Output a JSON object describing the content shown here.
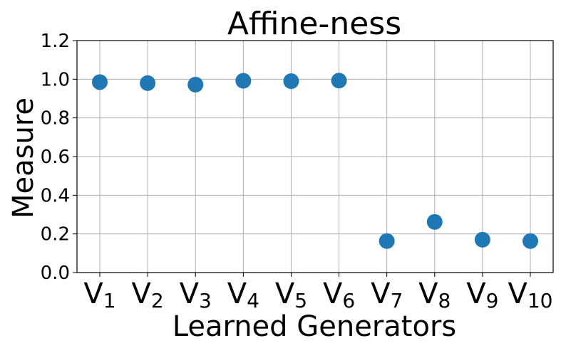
{
  "chart_data": {
    "type": "scatter",
    "title": "Affine-ness",
    "xlabel": "Learned Generators",
    "ylabel": "Measure",
    "categories": [
      {
        "base": "V",
        "sub": "1"
      },
      {
        "base": "V",
        "sub": "2"
      },
      {
        "base": "V",
        "sub": "3"
      },
      {
        "base": "V",
        "sub": "4"
      },
      {
        "base": "V",
        "sub": "5"
      },
      {
        "base": "V",
        "sub": "6"
      },
      {
        "base": "V",
        "sub": "7"
      },
      {
        "base": "V",
        "sub": "8"
      },
      {
        "base": "V",
        "sub": "9"
      },
      {
        "base": "V",
        "sub": "10"
      }
    ],
    "values": [
      0.985,
      0.98,
      0.972,
      0.992,
      0.99,
      0.993,
      0.163,
      0.262,
      0.17,
      0.163
    ],
    "ylim": [
      0.0,
      1.2
    ],
    "yticks": [
      "0.0",
      "0.2",
      "0.4",
      "0.6",
      "0.8",
      "1.0",
      "1.2"
    ],
    "grid": true,
    "marker_color": "#1f77b4"
  }
}
